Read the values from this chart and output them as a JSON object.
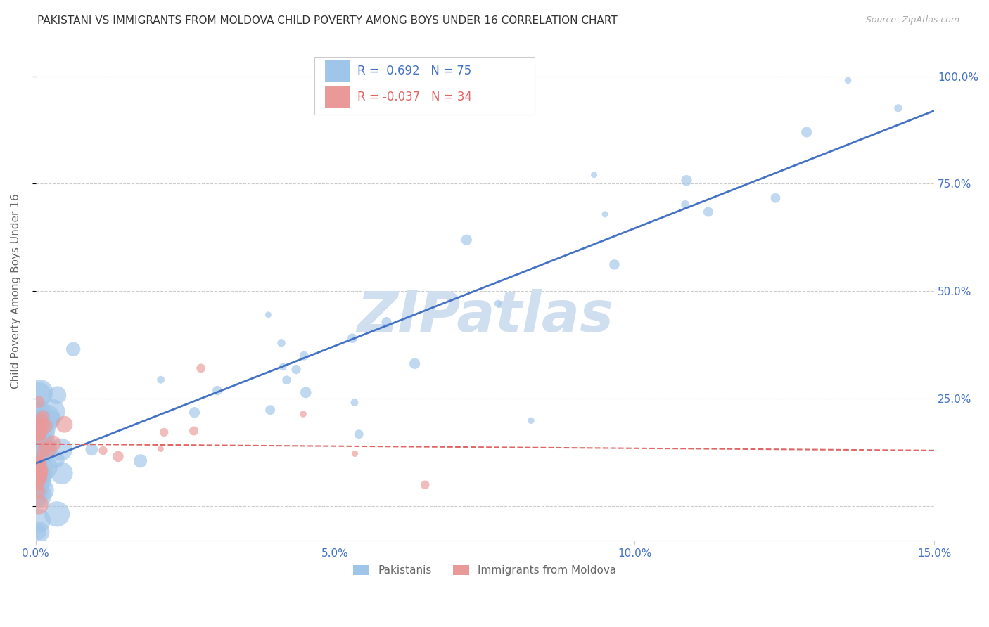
{
  "title": "PAKISTANI VS IMMIGRANTS FROM MOLDOVA CHILD POVERTY AMONG BOYS UNDER 16 CORRELATION CHART",
  "source": "Source: ZipAtlas.com",
  "ylabel": "Child Poverty Among Boys Under 16",
  "xlim": [
    0.0,
    0.15
  ],
  "ylim": [
    -0.08,
    1.08
  ],
  "title_color": "#333333",
  "source_color": "#aaaaaa",
  "axis_label_color": "#666666",
  "tick_color": "#4472c4",
  "watermark": "ZIPatlas",
  "watermark_color": "#d0dff0",
  "legend_text1": "R =  0.692   N = 75",
  "legend_text2": "R = -0.037   N = 34",
  "blue_color": "#9fc5e8",
  "pink_color": "#ea9999",
  "trendline_blue": "#4472c4",
  "trendline_pink": "#e06666",
  "grid_color": "#cccccc",
  "bottom_legend1": "Pakistanis",
  "bottom_legend2": "Immigrants from Moldova"
}
